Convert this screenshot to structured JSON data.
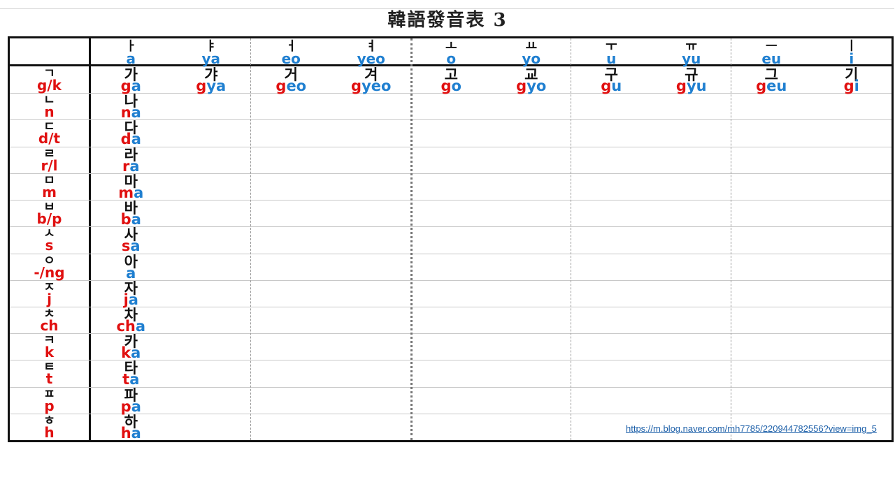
{
  "title": "韓語發音表 3",
  "vowels": [
    {
      "jamo": "ㅏ",
      "rom": "a"
    },
    {
      "jamo": "ㅑ",
      "rom": "ya"
    },
    {
      "jamo": "ㅓ",
      "rom": "eo"
    },
    {
      "jamo": "ㅕ",
      "rom": "yeo"
    },
    {
      "jamo": "ㅗ",
      "rom": "o"
    },
    {
      "jamo": "ㅛ",
      "rom": "yo"
    },
    {
      "jamo": "ㅜ",
      "rom": "u"
    },
    {
      "jamo": "ㅠ",
      "rom": "yu"
    },
    {
      "jamo": "ㅡ",
      "rom": "eu"
    },
    {
      "jamo": "ㅣ",
      "rom": "i"
    }
  ],
  "consonants": [
    {
      "jamo": "ㄱ",
      "rom": "g/k"
    },
    {
      "jamo": "ㄴ",
      "rom": "n"
    },
    {
      "jamo": "ㄷ",
      "rom": "d/t"
    },
    {
      "jamo": "ㄹ",
      "rom": "r/l"
    },
    {
      "jamo": "ㅁ",
      "rom": "m"
    },
    {
      "jamo": "ㅂ",
      "rom": "b/p"
    },
    {
      "jamo": "ㅅ",
      "rom": "s"
    },
    {
      "jamo": "ㅇ",
      "rom": "-/ng"
    },
    {
      "jamo": "ㅈ",
      "rom": "j"
    },
    {
      "jamo": "ㅊ",
      "rom": "ch"
    },
    {
      "jamo": "ㅋ",
      "rom": "k"
    },
    {
      "jamo": "ㅌ",
      "rom": "t"
    },
    {
      "jamo": "ㅍ",
      "rom": "p"
    },
    {
      "jamo": "ㅎ",
      "rom": "h"
    }
  ],
  "g_row": [
    {
      "syl": "가",
      "cons": "g",
      "vow": "a"
    },
    {
      "syl": "갸",
      "cons": "g",
      "vow": "ya"
    },
    {
      "syl": "거",
      "cons": "g",
      "vow": "eo"
    },
    {
      "syl": "겨",
      "cons": "g",
      "vow": "yeo"
    },
    {
      "syl": "고",
      "cons": "g",
      "vow": "o"
    },
    {
      "syl": "교",
      "cons": "g",
      "vow": "yo"
    },
    {
      "syl": "구",
      "cons": "g",
      "vow": "u"
    },
    {
      "syl": "규",
      "cons": "g",
      "vow": "yu"
    },
    {
      "syl": "그",
      "cons": "g",
      "vow": "eu"
    },
    {
      "syl": "기",
      "cons": "g",
      "vow": "i"
    }
  ],
  "a_col": [
    {
      "syl": "나",
      "cons": "n",
      "vow": "a"
    },
    {
      "syl": "다",
      "cons": "d",
      "vow": "a"
    },
    {
      "syl": "라",
      "cons": "r",
      "vow": "a"
    },
    {
      "syl": "마",
      "cons": "m",
      "vow": "a"
    },
    {
      "syl": "바",
      "cons": "b",
      "vow": "a"
    },
    {
      "syl": "사",
      "cons": "s",
      "vow": "a"
    },
    {
      "syl": "아",
      "cons": "",
      "vow": "a"
    },
    {
      "syl": "자",
      "cons": "j",
      "vow": "a"
    },
    {
      "syl": "차",
      "cons": "ch",
      "vow": "a"
    },
    {
      "syl": "카",
      "cons": "k",
      "vow": "a"
    },
    {
      "syl": "타",
      "cons": "t",
      "vow": "a"
    },
    {
      "syl": "파",
      "cons": "p",
      "vow": "a"
    },
    {
      "syl": "하",
      "cons": "h",
      "vow": "a"
    }
  ],
  "source_link": "https://m.blog.naver.com/mh7785/220944782556?view=img_5",
  "colors": {
    "consonant": "#e01010",
    "vowel": "#1f7fd0",
    "hangul": "#111111"
  }
}
